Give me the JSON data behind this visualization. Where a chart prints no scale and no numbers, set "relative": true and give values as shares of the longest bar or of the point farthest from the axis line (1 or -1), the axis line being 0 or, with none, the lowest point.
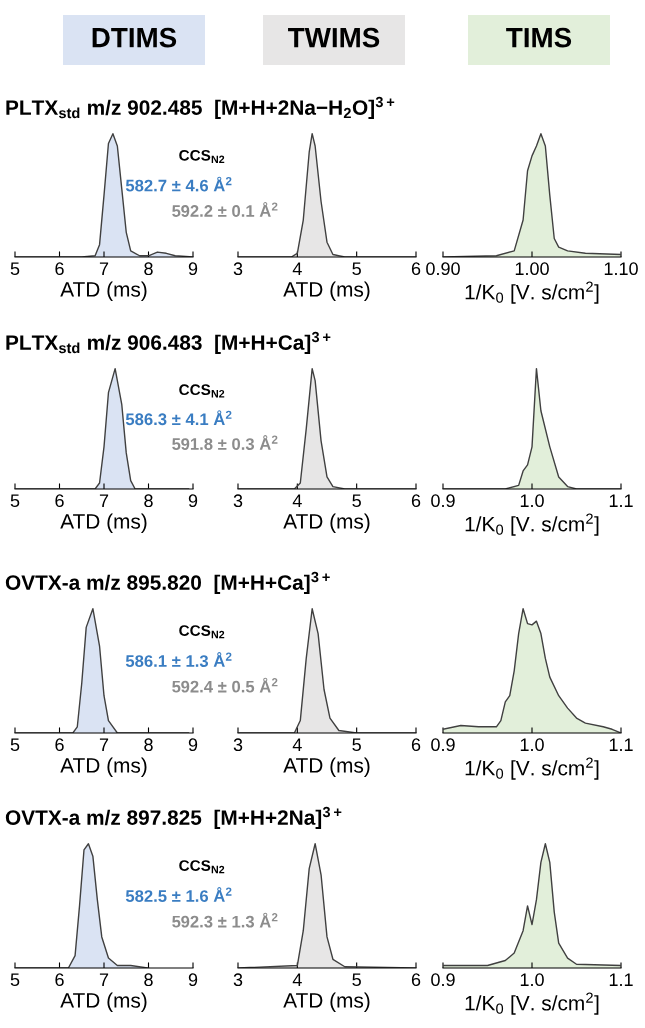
{
  "chart_data": [
    {
      "type": "other",
      "annotations": [
        "DTIMS",
        "TWIMS",
        "TIMS"
      ],
      "colors": [
        "#dae3f3",
        "#e7e6e6",
        "#e2efda"
      ]
    },
    {
      "type": "area",
      "title": "PLTX$_{std}$ m/z 902.485  [M+H+2Na−H$_{2}$O]$^{3+}$",
      "xlabel": "ATD (ms)",
      "relative": true,
      "xlim": [
        5,
        9
      ],
      "xticks": [
        5,
        6,
        7,
        8,
        9
      ],
      "annotations": [
        "CCS$_{N2}$",
        "582.7 ± 4.6 Å$^{2}$",
        "592.2 ± 0.1 Å$^{2}$"
      ],
      "x": [
        5,
        6.5,
        6.8,
        6.9,
        7.0,
        7.1,
        7.2,
        7.3,
        7.4,
        7.5,
        7.6,
        7.8,
        8.0,
        8.2,
        8.4,
        8.6,
        9.0
      ],
      "series": [
        {
          "color": "#dae3f3",
          "values": [
            0,
            0,
            0.01,
            0.1,
            0.5,
            0.92,
            1,
            0.9,
            0.55,
            0.2,
            0.05,
            0.01,
            0.01,
            0.04,
            0.03,
            0.01,
            0
          ]
        }
      ]
    },
    {
      "type": "area",
      "xlabel": "ATD (ms)",
      "relative": true,
      "xlim": [
        3,
        6
      ],
      "xticks": [
        3,
        4,
        5,
        6
      ],
      "x": [
        3,
        3.9,
        4.0,
        4.1,
        4.2,
        4.25,
        4.3,
        4.4,
        4.5,
        4.6,
        4.8,
        6
      ],
      "series": [
        {
          "color": "#e7e6e6",
          "values": [
            0,
            0,
            0.03,
            0.3,
            0.85,
            1,
            0.9,
            0.45,
            0.12,
            0.02,
            0,
            0
          ]
        }
      ]
    },
    {
      "type": "area",
      "xlabel": "1/K$_{0}$ [V. s/cm$^{2}$]",
      "relative": true,
      "xlim": [
        0.9,
        1.1
      ],
      "xticks": [
        {
          "value": 0.9,
          "label": "0.90"
        },
        {
          "value": 1.0,
          "label": "1.00"
        },
        {
          "value": 1.1,
          "label": "1.10"
        }
      ],
      "x": [
        0.9,
        0.96,
        0.98,
        0.99,
        0.995,
        1.0,
        1.005,
        1.01,
        1.015,
        1.02,
        1.025,
        1.03,
        1.04,
        1.06,
        1.1
      ],
      "series": [
        {
          "color": "#e2efda",
          "values": [
            0,
            0.01,
            0.05,
            0.3,
            0.7,
            0.82,
            0.9,
            1.0,
            0.9,
            0.5,
            0.15,
            0.08,
            0.05,
            0.03,
            0.02
          ]
        }
      ]
    },
    {
      "type": "area",
      "title": "PLTX$_{std}$ m/z 906.483  [M+H+Ca]$^{3+}$",
      "xlabel": "ATD (ms)",
      "relative": true,
      "xlim": [
        5,
        9
      ],
      "xticks": [
        5,
        6,
        7,
        8,
        9
      ],
      "annotations": [
        "CCS$_{N2}$",
        "586.3 ± 4.1 Å$^{2}$",
        "591.8 ± 0.3 Å$^{2}$"
      ],
      "x": [
        5,
        6.8,
        6.9,
        7.0,
        7.1,
        7.25,
        7.4,
        7.5,
        7.6,
        7.7,
        8.9
      ],
      "series": [
        {
          "color": "#dae3f3",
          "values": [
            0,
            0,
            0.05,
            0.35,
            0.8,
            1,
            0.7,
            0.3,
            0.07,
            0,
            0
          ]
        }
      ]
    },
    {
      "type": "area",
      "xlabel": "ATD (ms)",
      "relative": true,
      "xlim": [
        3,
        6
      ],
      "xticks": [
        3,
        4,
        5,
        6
      ],
      "x": [
        3,
        3.95,
        4.05,
        4.15,
        4.25,
        4.3,
        4.4,
        4.5,
        4.6,
        4.8,
        6
      ],
      "series": [
        {
          "color": "#e7e6e6",
          "values": [
            0,
            0,
            0.05,
            0.5,
            1,
            0.9,
            0.4,
            0.1,
            0.02,
            0,
            0
          ]
        }
      ]
    },
    {
      "type": "area",
      "xlabel": "1/K$_{0}$ [V. s/cm$^{2}$]",
      "relative": true,
      "xlim": [
        0.9,
        1.1
      ],
      "xticks": [
        {
          "value": 0.9,
          "label": "0.9"
        },
        {
          "value": 1.0,
          "label": "1.0"
        },
        {
          "value": 1.1,
          "label": "1.1"
        }
      ],
      "x": [
        0.9,
        0.97,
        0.985,
        0.99,
        0.995,
        1.0,
        1.005,
        1.01,
        1.02,
        1.03,
        1.04,
        1.05,
        1.1
      ],
      "series": [
        {
          "color": "#e2efda",
          "values": [
            0,
            0,
            0.03,
            0.15,
            0.2,
            0.35,
            1,
            0.65,
            0.35,
            0.1,
            0.02,
            0,
            0
          ]
        }
      ]
    },
    {
      "type": "area",
      "title": "OVTX-a m/z 895.820  [M+H+Ca]$^{3+}$",
      "xlabel": "ATD (ms)",
      "relative": true,
      "xlim": [
        5,
        9
      ],
      "xticks": [
        5,
        6,
        7,
        8,
        9
      ],
      "annotations": [
        "CCS$_{N2}$",
        "586.1 ± 1.3 Å$^{2}$",
        "592.4 ± 0.5 Å$^{2}$"
      ],
      "x": [
        5,
        6.3,
        6.4,
        6.5,
        6.6,
        6.75,
        6.9,
        7.0,
        7.1,
        7.3,
        8.9
      ],
      "series": [
        {
          "color": "#dae3f3",
          "values": [
            0,
            0,
            0.05,
            0.4,
            0.85,
            1,
            0.7,
            0.3,
            0.1,
            0,
            0
          ]
        }
      ]
    },
    {
      "type": "area",
      "xlabel": "ATD (ms)",
      "relative": true,
      "xlim": [
        3,
        6
      ],
      "xticks": [
        3,
        4,
        5,
        6
      ],
      "x": [
        3,
        3.95,
        4.05,
        4.15,
        4.25,
        4.35,
        4.45,
        4.55,
        4.7,
        5,
        6
      ],
      "series": [
        {
          "color": "#e7e6e6",
          "values": [
            0,
            0,
            0.1,
            0.6,
            1,
            0.8,
            0.35,
            0.12,
            0.02,
            0,
            0
          ]
        }
      ]
    },
    {
      "type": "area",
      "xlabel": "1/K$_{0}$ [V. s/cm$^{2}$]",
      "relative": true,
      "xlim": [
        0.9,
        1.1
      ],
      "xticks": [
        {
          "value": 0.9,
          "label": "0.9"
        },
        {
          "value": 1.0,
          "label": "1.0"
        },
        {
          "value": 1.1,
          "label": "1.1"
        }
      ],
      "x": [
        0.9,
        0.92,
        0.94,
        0.96,
        0.965,
        0.97,
        0.975,
        0.98,
        0.985,
        0.99,
        0.995,
        1.0,
        1.005,
        1.01,
        1.015,
        1.02,
        1.03,
        1.04,
        1.05,
        1.06,
        1.08,
        1.09,
        1.1
      ],
      "series": [
        {
          "color": "#e2efda",
          "values": [
            0.03,
            0.06,
            0.05,
            0.05,
            0.1,
            0.25,
            0.3,
            0.5,
            0.8,
            1.0,
            0.88,
            0.87,
            0.9,
            0.8,
            0.6,
            0.45,
            0.3,
            0.2,
            0.12,
            0.08,
            0.05,
            0.03,
            0
          ]
        }
      ]
    },
    {
      "type": "area",
      "title": "OVTX-a m/z 897.825  [M+H+2Na]$^{3+}$",
      "xlabel": "ATD (ms)",
      "relative": true,
      "xlim": [
        5,
        9
      ],
      "xticks": [
        5,
        6,
        7,
        8,
        9
      ],
      "annotations": [
        "CCS$_{N2}$",
        "582.5 ± 1.6 Å$^{2}$",
        "592.3 ± 1.3 Å$^{2}$"
      ],
      "x": [
        5,
        6.2,
        6.35,
        6.45,
        6.55,
        6.65,
        6.75,
        6.85,
        6.95,
        7.1,
        7.3,
        7.6,
        8
      ],
      "series": [
        {
          "color": "#dae3f3",
          "values": [
            0,
            0,
            0.1,
            0.5,
            0.95,
            1,
            0.9,
            0.55,
            0.25,
            0.08,
            0.02,
            0.02,
            0
          ]
        }
      ]
    },
    {
      "type": "area",
      "xlabel": "ATD (ms)",
      "relative": true,
      "xlim": [
        3,
        6
      ],
      "xticks": [
        3,
        4,
        5,
        6
      ],
      "x": [
        3,
        4.0,
        4.1,
        4.2,
        4.3,
        4.4,
        4.5,
        4.6,
        4.8,
        6
      ],
      "series": [
        {
          "color": "#e7e6e6",
          "values": [
            0,
            0.02,
            0.3,
            0.8,
            1,
            0.75,
            0.25,
            0.07,
            0.01,
            0
          ]
        }
      ]
    },
    {
      "type": "area",
      "xlabel": "1/K$_{0}$ [V. s/cm$^{2}$]",
      "relative": true,
      "xlim": [
        0.9,
        1.1
      ],
      "xticks": [
        {
          "value": 0.9,
          "label": "0.9"
        },
        {
          "value": 1.0,
          "label": "1.0"
        },
        {
          "value": 1.1,
          "label": "1.1"
        }
      ],
      "x": [
        0.9,
        0.95,
        0.97,
        0.98,
        0.99,
        0.995,
        1.0,
        1.005,
        1.01,
        1.015,
        1.02,
        1.025,
        1.03,
        1.04,
        1.05,
        1.1
      ],
      "series": [
        {
          "color": "#e2efda",
          "values": [
            0.02,
            0.02,
            0.06,
            0.12,
            0.3,
            0.5,
            0.35,
            0.55,
            0.85,
            1,
            0.85,
            0.45,
            0.2,
            0.08,
            0.03,
            0.02
          ]
        }
      ]
    }
  ]
}
